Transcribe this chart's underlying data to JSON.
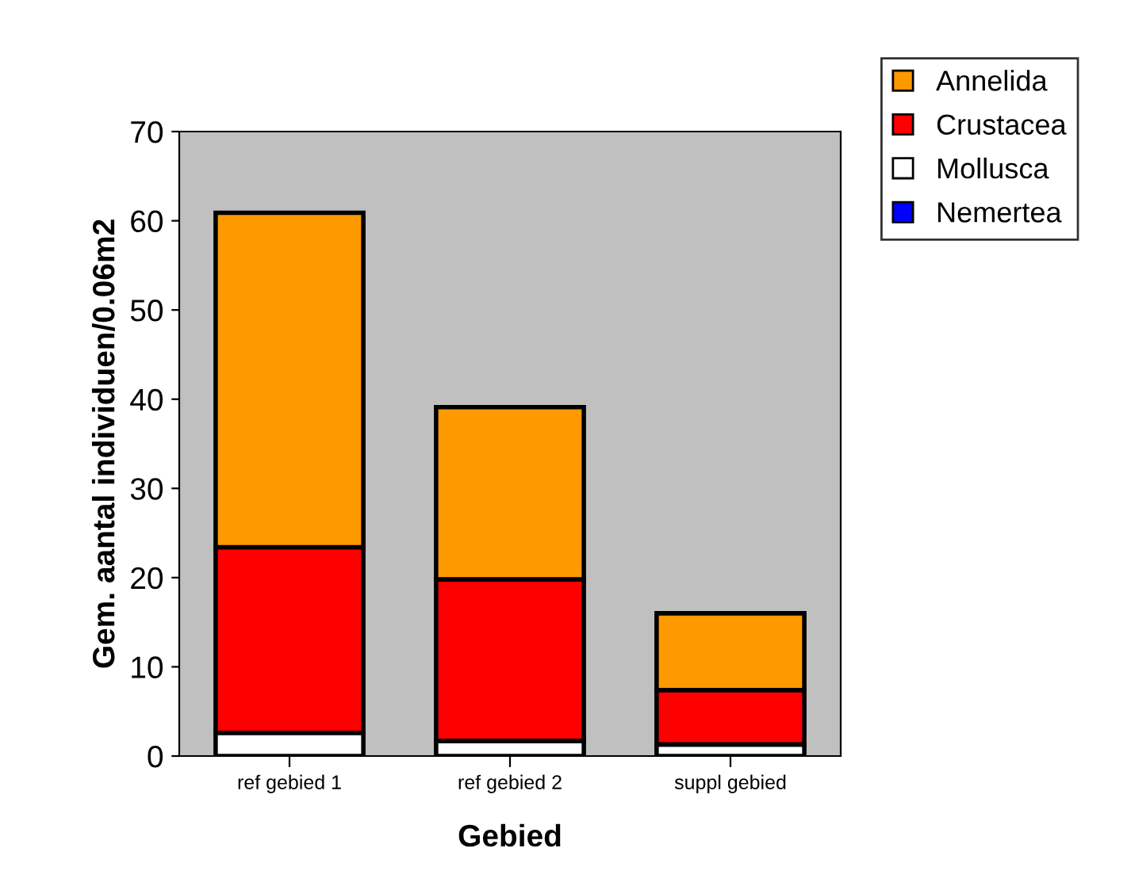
{
  "chart_data": {
    "type": "bar",
    "stacked": true,
    "xlabel": "Gebied",
    "ylabel": "Gem. aantal individuen/0.06m2",
    "categories": [
      "ref gebied 1",
      "ref gebied 2",
      "suppl gebied"
    ],
    "series": [
      {
        "name": "Nemertea",
        "color": "#0000ff",
        "values": [
          null,
          null,
          null
        ]
      },
      {
        "name": "Mollusca",
        "color": "#ffffff",
        "values": [
          2.6,
          1.7,
          1.3
        ]
      },
      {
        "name": "Crustacea",
        "color": "#ff0000",
        "values": [
          20.8,
          18.1,
          6.1
        ]
      },
      {
        "name": "Annelida",
        "color": "#ff9900",
        "values": [
          37.5,
          19.3,
          8.6
        ]
      }
    ],
    "ylim": [
      0,
      70
    ],
    "yticks": [
      0,
      10,
      20,
      30,
      40,
      50,
      60,
      70
    ],
    "grid": false,
    "legend": "top right"
  }
}
